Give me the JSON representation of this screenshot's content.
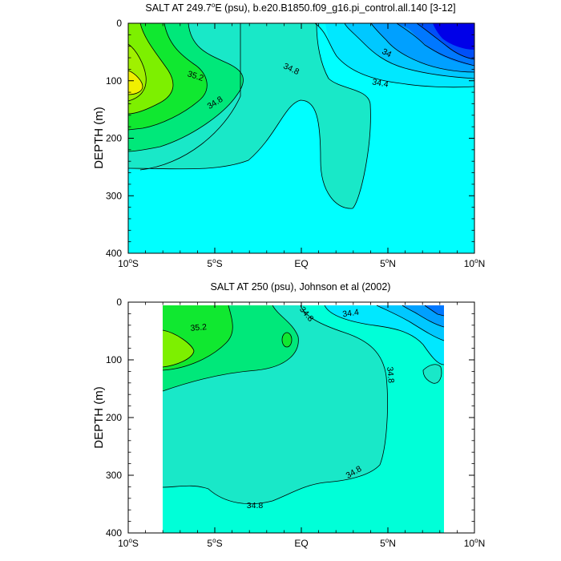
{
  "chart_data": [
    {
      "type": "contour",
      "title": "SALT AT 249.7°E (psu), b.e20.B1850.f09_g16.pi_control.all.140 [3-12]",
      "title_parts": {
        "prefix": "SALT AT 249.7",
        "sup": "o",
        "suffix": "E (psu), b.e20.B1850.f09_g16.pi_control.all.140 [3-12]"
      },
      "ylabel": "DEPTH (m)",
      "xlim": [
        -10,
        10
      ],
      "ylim": [
        400,
        0
      ],
      "x_ticks": [
        {
          "text": "10",
          "sup": "o",
          "unit": "S"
        },
        {
          "text": "5",
          "sup": "o",
          "unit": "S"
        },
        {
          "text": "EQ",
          "sup": "",
          "unit": ""
        },
        {
          "text": "5",
          "sup": "o",
          "unit": "N"
        },
        {
          "text": "10",
          "sup": "o",
          "unit": "N"
        }
      ],
      "y_ticks": [
        "0",
        "100",
        "200",
        "300",
        "400"
      ],
      "contour_labels": [
        "35.2",
        "34.8",
        "34.8",
        "34",
        "34.4"
      ],
      "regions": [
        {
          "level": "34.6–34.8",
          "color": "#00ffff"
        },
        {
          "level": "34.8–35.0",
          "color": "#19e8c8"
        },
        {
          "level": "35.0–35.2",
          "color": "#00e87a"
        },
        {
          "level": "35.2–35.4",
          "color": "#10e830"
        },
        {
          "level": "35.4–35.6",
          "color": "#7df000"
        },
        {
          "level": "35.6–35.8",
          "color": "#a0f000"
        },
        {
          "level": ">35.8",
          "color": "#f0f000"
        },
        {
          "level": "34.4–34.6",
          "color": "#00e8ff"
        },
        {
          "level": "34.2–34.4",
          "color": "#00c8ff"
        },
        {
          "level": "34.0–34.2",
          "color": "#00a0ff"
        },
        {
          "level": "33.8–34.0",
          "color": "#0078ff"
        },
        {
          "level": "33.6–33.8",
          "color": "#0050f8"
        },
        {
          "level": "<33.6",
          "color": "#0000e8"
        }
      ]
    },
    {
      "type": "contour",
      "title": "SALT AT 250 (psu), Johnson et al (2002)",
      "ylabel": "DEPTH (m)",
      "xlim": [
        -10,
        10
      ],
      "ylim": [
        400,
        0
      ],
      "x_ticks": [
        {
          "text": "10",
          "sup": "o",
          "unit": "S"
        },
        {
          "text": "5",
          "sup": "o",
          "unit": "S"
        },
        {
          "text": "EQ",
          "sup": "",
          "unit": ""
        },
        {
          "text": "5",
          "sup": "o",
          "unit": "N"
        },
        {
          "text": "10",
          "sup": "o",
          "unit": "N"
        }
      ],
      "y_ticks": [
        "0",
        "100",
        "200",
        "300",
        "400"
      ],
      "data_extent": {
        "x": [
          -8,
          8.2
        ],
        "depth": [
          5,
          400
        ]
      },
      "contour_labels": [
        "35.2",
        "34.8",
        "34.4",
        "34.8",
        "34.8",
        "34.8"
      ],
      "regions": [
        {
          "level": "34.6–34.8",
          "color": "#00ffd8"
        },
        {
          "level": "34.8–35.0",
          "color": "#19e8c8"
        },
        {
          "level": "35.0–35.2",
          "color": "#00e87a"
        },
        {
          "level": "35.2–35.4",
          "color": "#10e830"
        },
        {
          "level": "35.4–35.6",
          "color": "#7df000"
        },
        {
          "level": "34.4–34.6",
          "color": "#00e8ff"
        },
        {
          "level": "34.2–34.4",
          "color": "#00c8ff"
        },
        {
          "level": "34.0–34.2",
          "color": "#00a0ff"
        },
        {
          "level": "<34.0",
          "color": "#0078ff"
        }
      ]
    }
  ]
}
